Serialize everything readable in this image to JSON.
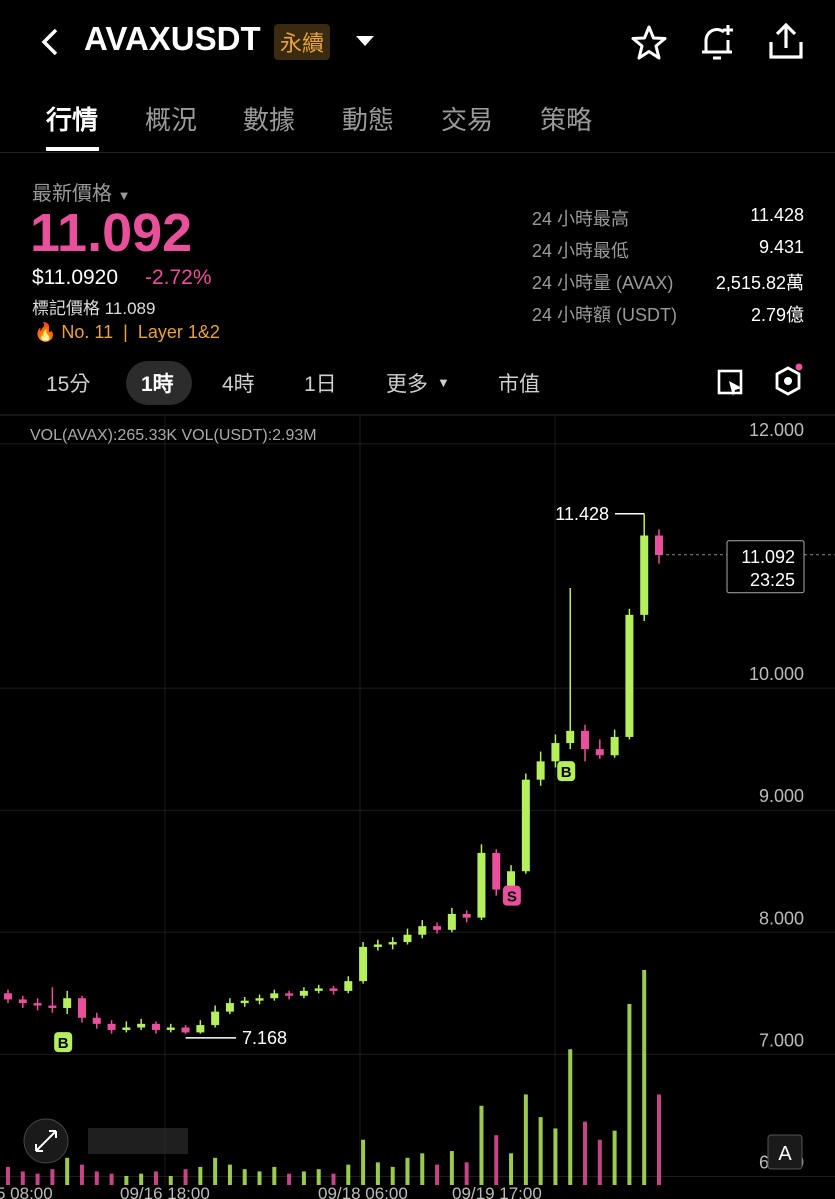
{
  "header": {
    "symbol": "AVAXUSDT",
    "badge": "永續"
  },
  "tabs": [
    "行情",
    "概況",
    "數據",
    "動態",
    "交易",
    "策略"
  ],
  "price": {
    "label": "最新價格",
    "last": "11.092",
    "usd": "$11.0920",
    "change": "-2.72%",
    "mark": "標記價格 11.089",
    "rank": "No. 11",
    "sector": "Layer 1&2"
  },
  "stats": [
    [
      "24 小時最高",
      "11.428"
    ],
    [
      "24 小時最低",
      "9.431"
    ],
    [
      "24 小時量 (AVAX)",
      "2,515.82萬"
    ],
    [
      "24 小時額 (USDT)",
      "2.79億"
    ]
  ],
  "intervals": [
    "15分",
    "1時",
    "4時",
    "1日",
    "更多",
    "市值"
  ],
  "chart": {
    "type": "candlestick",
    "volume_info": "VOL(AVAX):265.33K VOL(USDT):2.93M",
    "up_color": "#b6ef5c",
    "down_color": "#e8509c",
    "ylim": [
      5.93,
      12.237
    ],
    "yticks": [
      {
        "value": 6,
        "label": "6.000"
      },
      {
        "value": 7,
        "label": "7.000"
      },
      {
        "value": 8,
        "label": "8.000"
      },
      {
        "value": 9,
        "label": "9.000"
      },
      {
        "value": 10,
        "label": "10.000"
      },
      {
        "value": 12,
        "label": "12.000"
      }
    ],
    "x_labels": [
      "5 08:00",
      "09/16 18:00",
      "09/18 06:00",
      "09/19 17:00"
    ],
    "candles": [
      [
        7.5,
        7.53,
        7.42,
        7.45
      ],
      [
        7.45,
        7.48,
        7.38,
        7.42
      ],
      [
        7.42,
        7.46,
        7.36,
        7.4
      ],
      [
        7.4,
        7.55,
        7.34,
        7.38
      ],
      [
        7.38,
        7.52,
        7.33,
        7.46
      ],
      [
        7.46,
        7.48,
        7.26,
        7.3
      ],
      [
        7.3,
        7.34,
        7.21,
        7.25
      ],
      [
        7.25,
        7.28,
        7.17,
        7.2
      ],
      [
        7.2,
        7.27,
        7.18,
        7.22
      ],
      [
        7.22,
        7.29,
        7.2,
        7.25
      ],
      [
        7.25,
        7.27,
        7.17,
        7.2
      ],
      [
        7.2,
        7.25,
        7.18,
        7.22
      ],
      [
        7.22,
        7.24,
        7.168,
        7.18
      ],
      [
        7.18,
        7.28,
        7.17,
        7.24
      ],
      [
        7.24,
        7.4,
        7.22,
        7.35
      ],
      [
        7.35,
        7.46,
        7.33,
        7.42
      ],
      [
        7.42,
        7.47,
        7.39,
        7.44
      ],
      [
        7.44,
        7.49,
        7.41,
        7.46
      ],
      [
        7.46,
        7.53,
        7.44,
        7.5
      ],
      [
        7.5,
        7.52,
        7.45,
        7.48
      ],
      [
        7.48,
        7.55,
        7.46,
        7.52
      ],
      [
        7.52,
        7.57,
        7.5,
        7.54
      ],
      [
        7.54,
        7.56,
        7.49,
        7.52
      ],
      [
        7.52,
        7.64,
        7.5,
        7.6
      ],
      [
        7.6,
        7.92,
        7.58,
        7.88
      ],
      [
        7.88,
        7.94,
        7.85,
        7.9
      ],
      [
        7.9,
        7.96,
        7.86,
        7.92
      ],
      [
        7.92,
        8.03,
        7.9,
        7.98
      ],
      [
        7.98,
        8.1,
        7.95,
        8.05
      ],
      [
        8.05,
        8.08,
        7.99,
        8.02
      ],
      [
        8.02,
        8.2,
        8.0,
        8.15
      ],
      [
        8.15,
        8.18,
        8.08,
        8.12
      ],
      [
        8.12,
        8.72,
        8.1,
        8.65
      ],
      [
        8.65,
        8.68,
        8.3,
        8.35
      ],
      [
        8.35,
        8.55,
        8.32,
        8.5
      ],
      [
        8.5,
        9.3,
        8.48,
        9.25
      ],
      [
        9.25,
        9.48,
        9.2,
        9.4
      ],
      [
        9.4,
        9.62,
        9.35,
        9.55
      ],
      [
        9.55,
        10.82,
        9.5,
        9.65
      ],
      [
        9.65,
        9.7,
        9.4,
        9.5
      ],
      [
        9.5,
        9.58,
        9.42,
        9.45
      ],
      [
        9.45,
        9.66,
        9.43,
        9.6
      ],
      [
        9.6,
        10.65,
        9.58,
        10.6
      ],
      [
        10.6,
        11.428,
        10.55,
        11.25
      ],
      [
        11.25,
        11.3,
        11.02,
        11.09
      ]
    ],
    "volumes": [
      8,
      6,
      5,
      7,
      12,
      9,
      6,
      5,
      4,
      5,
      6,
      4,
      7,
      8,
      12,
      9,
      7,
      6,
      8,
      5,
      6,
      7,
      5,
      9,
      20,
      10,
      8,
      12,
      14,
      9,
      15,
      10,
      35,
      22,
      14,
      40,
      30,
      25,
      60,
      28,
      20,
      24,
      80,
      95,
      40
    ],
    "high_label": "11.428",
    "low_label": "7.168",
    "last_price": 11.092,
    "last_label": "11.092",
    "countdown": "23:25",
    "markers": [
      "B",
      "S",
      "B"
    ],
    "button": "A"
  }
}
